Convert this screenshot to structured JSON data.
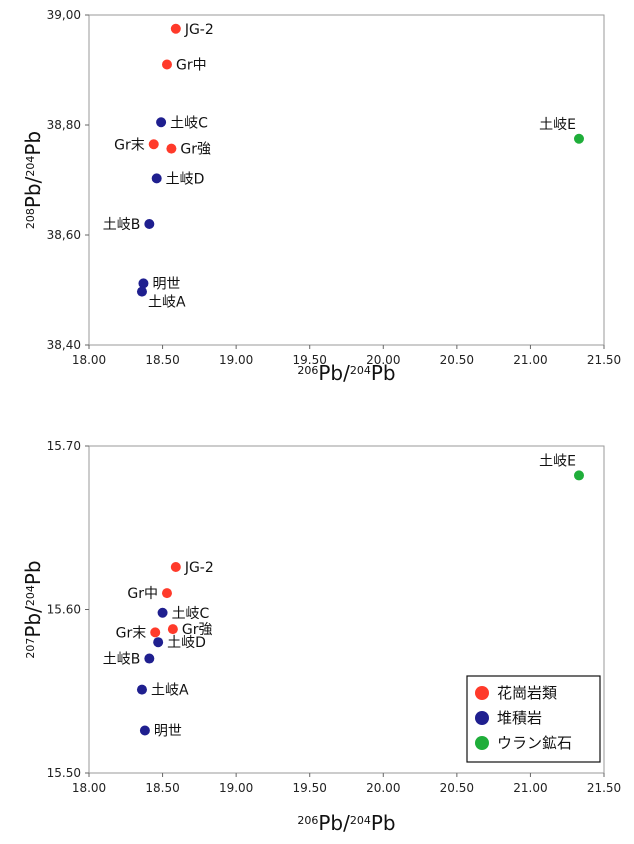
{
  "chart_data": [
    {
      "type": "scatter",
      "xlim": [
        18.0,
        21.5
      ],
      "ylim": [
        38.4,
        39.0
      ],
      "x_ticks": [
        "18.00",
        "18.50",
        "19.00",
        "19.50",
        "20.00",
        "20.50",
        "21.00",
        "21.50"
      ],
      "y_ticks": [
        "38,40",
        "38,60",
        "38,80",
        "39,00"
      ],
      "x_tick_values": [
        18.0,
        18.5,
        19.0,
        19.5,
        20.0,
        20.5,
        21.0,
        21.5
      ],
      "y_tick_values": [
        38.4,
        38.6,
        38.8,
        39.0
      ],
      "xlabel": {
        "sup1": "206",
        "base1": "Pb/",
        "sup2": "204",
        "base2": "Pb"
      },
      "ylabel": {
        "sup1": "208",
        "base1": "Pb/",
        "sup2": "204",
        "base2": "Pb"
      },
      "grid": false,
      "series": [
        {
          "color": "#ff3a2a",
          "points": [
            {
              "x": 18.59,
              "y": 38.975,
              "label": "JG-2",
              "label_side": "right"
            },
            {
              "x": 18.53,
              "y": 38.91,
              "label": "Gr中",
              "label_side": "right"
            },
            {
              "x": 18.44,
              "y": 38.765,
              "label": "Gr末",
              "label_side": "left"
            },
            {
              "x": 18.56,
              "y": 38.757,
              "label": "Gr強",
              "label_side": "right"
            }
          ]
        },
        {
          "color": "#1f1f8f",
          "points": [
            {
              "x": 18.49,
              "y": 38.805,
              "label": "土岐C",
              "label_side": "right"
            },
            {
              "x": 18.46,
              "y": 38.703,
              "label": "土岐D",
              "label_side": "right"
            },
            {
              "x": 18.41,
              "y": 38.62,
              "label": "土岐B",
              "label_side": "left"
            },
            {
              "x": 18.37,
              "y": 38.512,
              "label": "明世",
              "label_side": "right"
            },
            {
              "x": 18.36,
              "y": 38.497,
              "label": "土岐A",
              "label_side": "below-right"
            }
          ]
        },
        {
          "color": "#1fae3a",
          "points": [
            {
              "x": 21.33,
              "y": 38.775,
              "label": "土岐E",
              "label_side": "above-left"
            }
          ]
        }
      ]
    },
    {
      "type": "scatter",
      "xlim": [
        18.0,
        21.5
      ],
      "ylim": [
        15.5,
        15.7
      ],
      "x_ticks": [
        "18.00",
        "18.50",
        "19.00",
        "19.50",
        "20.00",
        "20.50",
        "21.00",
        "21.50"
      ],
      "y_ticks": [
        "15.50",
        "15.60",
        "15.70"
      ],
      "x_tick_values": [
        18.0,
        18.5,
        19.0,
        19.5,
        20.0,
        20.5,
        21.0,
        21.5
      ],
      "y_tick_values": [
        15.5,
        15.6,
        15.7
      ],
      "xlabel": {
        "sup1": "206",
        "base1": "Pb/",
        "sup2": "204",
        "base2": "Pb"
      },
      "ylabel": {
        "sup1": "207",
        "base1": "Pb/",
        "sup2": "204",
        "base2": "Pb"
      },
      "grid": false,
      "legend_position": "bottom-right",
      "series": [
        {
          "name": "花崗岩類",
          "color": "#ff3a2a",
          "points": [
            {
              "x": 18.59,
              "y": 15.626,
              "label": "JG-2",
              "label_side": "right"
            },
            {
              "x": 18.53,
              "y": 15.61,
              "label": "Gr中",
              "label_side": "left"
            },
            {
              "x": 18.45,
              "y": 15.586,
              "label": "Gr末",
              "label_side": "left"
            },
            {
              "x": 18.57,
              "y": 15.588,
              "label": "Gr強",
              "label_side": "right"
            }
          ]
        },
        {
          "name": "堆積岩",
          "color": "#1f1f8f",
          "points": [
            {
              "x": 18.5,
              "y": 15.598,
              "label": "土岐C",
              "label_side": "right"
            },
            {
              "x": 18.47,
              "y": 15.58,
              "label": "土岐D",
              "label_side": "right"
            },
            {
              "x": 18.41,
              "y": 15.57,
              "label": "土岐B",
              "label_side": "left"
            },
            {
              "x": 18.36,
              "y": 15.551,
              "label": "土岐A",
              "label_side": "right"
            },
            {
              "x": 18.38,
              "y": 15.526,
              "label": "明世",
              "label_side": "right"
            }
          ]
        },
        {
          "name": "ウラン鉱石",
          "color": "#1fae3a",
          "points": [
            {
              "x": 21.33,
              "y": 15.682,
              "label": "土岐E",
              "label_side": "above-left"
            }
          ]
        }
      ]
    }
  ]
}
